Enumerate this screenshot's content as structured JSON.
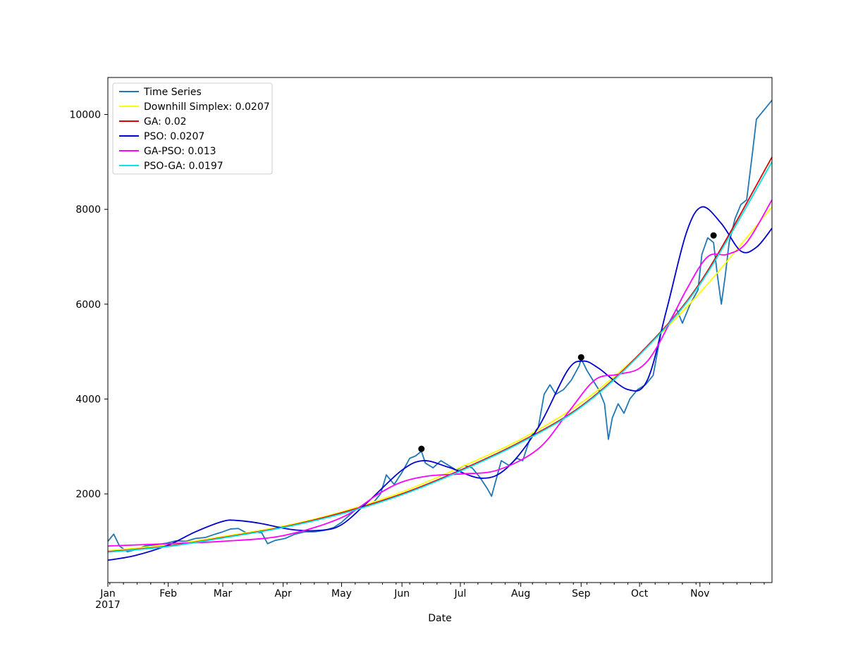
{
  "chart_data": {
    "type": "line",
    "title": "",
    "xlabel": "Date",
    "ylabel": "",
    "x_range": [
      "2017-01-01",
      "2017-12-08"
    ],
    "ylim": [
      130,
      10780
    ],
    "grid": false,
    "legend_position": "top-left",
    "x_ticks": [
      {
        "date": "2017-01-01",
        "label": "Jan",
        "sublabel": "2017"
      },
      {
        "date": "2017-02-01",
        "label": "Feb",
        "sublabel": ""
      },
      {
        "date": "2017-03-01",
        "label": "Mar",
        "sublabel": ""
      },
      {
        "date": "2017-04-01",
        "label": "Apr",
        "sublabel": ""
      },
      {
        "date": "2017-05-01",
        "label": "May",
        "sublabel": ""
      },
      {
        "date": "2017-06-01",
        "label": "Jun",
        "sublabel": ""
      },
      {
        "date": "2017-07-01",
        "label": "Jul",
        "sublabel": ""
      },
      {
        "date": "2017-08-01",
        "label": "Aug",
        "sublabel": ""
      },
      {
        "date": "2017-09-01",
        "label": "Sep",
        "sublabel": ""
      },
      {
        "date": "2017-10-01",
        "label": "Oct",
        "sublabel": ""
      },
      {
        "date": "2017-11-01",
        "label": "Nov",
        "sublabel": ""
      }
    ],
    "y_ticks": [
      2000,
      4000,
      6000,
      8000,
      10000
    ],
    "series": [
      {
        "name": "Time Series",
        "color": "#1f77b4",
        "points": [
          [
            "2017-01-01",
            1000
          ],
          [
            "2017-01-04",
            1150
          ],
          [
            "2017-01-07",
            900
          ],
          [
            "2017-01-11",
            780
          ],
          [
            "2017-01-15",
            820
          ],
          [
            "2017-01-20",
            900
          ],
          [
            "2017-01-25",
            920
          ],
          [
            "2017-01-31",
            960
          ],
          [
            "2017-02-05",
            1010
          ],
          [
            "2017-02-10",
            1000
          ],
          [
            "2017-02-15",
            1060
          ],
          [
            "2017-02-20",
            1080
          ],
          [
            "2017-02-25",
            1150
          ],
          [
            "2017-03-01",
            1200
          ],
          [
            "2017-03-05",
            1260
          ],
          [
            "2017-03-09",
            1270
          ],
          [
            "2017-03-13",
            1180
          ],
          [
            "2017-03-17",
            1200
          ],
          [
            "2017-03-21",
            1180
          ],
          [
            "2017-03-24",
            950
          ],
          [
            "2017-03-28",
            1020
          ],
          [
            "2017-04-02",
            1060
          ],
          [
            "2017-04-07",
            1150
          ],
          [
            "2017-04-12",
            1200
          ],
          [
            "2017-04-17",
            1200
          ],
          [
            "2017-04-22",
            1230
          ],
          [
            "2017-04-27",
            1290
          ],
          [
            "2017-05-01",
            1400
          ],
          [
            "2017-05-05",
            1550
          ],
          [
            "2017-05-09",
            1700
          ],
          [
            "2017-05-13",
            1780
          ],
          [
            "2017-05-17",
            1800
          ],
          [
            "2017-05-21",
            2000
          ],
          [
            "2017-05-24",
            2400
          ],
          [
            "2017-05-28",
            2200
          ],
          [
            "2017-06-01",
            2450
          ],
          [
            "2017-06-05",
            2750
          ],
          [
            "2017-06-08",
            2800
          ],
          [
            "2017-06-11",
            2900
          ],
          [
            "2017-06-13",
            2650
          ],
          [
            "2017-06-17",
            2550
          ],
          [
            "2017-06-21",
            2700
          ],
          [
            "2017-06-25",
            2600
          ],
          [
            "2017-06-29",
            2500
          ],
          [
            "2017-07-03",
            2600
          ],
          [
            "2017-07-07",
            2550
          ],
          [
            "2017-07-11",
            2350
          ],
          [
            "2017-07-15",
            2100
          ],
          [
            "2017-07-17",
            1950
          ],
          [
            "2017-07-19",
            2250
          ],
          [
            "2017-07-22",
            2700
          ],
          [
            "2017-07-26",
            2600
          ],
          [
            "2017-07-30",
            2750
          ],
          [
            "2017-08-02",
            2700
          ],
          [
            "2017-08-06",
            3200
          ],
          [
            "2017-08-10",
            3400
          ],
          [
            "2017-08-13",
            4100
          ],
          [
            "2017-08-16",
            4300
          ],
          [
            "2017-08-19",
            4100
          ],
          [
            "2017-08-23",
            4200
          ],
          [
            "2017-08-27",
            4400
          ],
          [
            "2017-08-31",
            4700
          ],
          [
            "2017-09-01",
            4850
          ],
          [
            "2017-09-04",
            4600
          ],
          [
            "2017-09-07",
            4400
          ],
          [
            "2017-09-10",
            4200
          ],
          [
            "2017-09-13",
            3900
          ],
          [
            "2017-09-15",
            3150
          ],
          [
            "2017-09-17",
            3600
          ],
          [
            "2017-09-20",
            3900
          ],
          [
            "2017-09-23",
            3700
          ],
          [
            "2017-09-26",
            4000
          ],
          [
            "2017-09-30",
            4200
          ],
          [
            "2017-10-04",
            4300
          ],
          [
            "2017-10-08",
            4500
          ],
          [
            "2017-10-12",
            5400
          ],
          [
            "2017-10-16",
            5600
          ],
          [
            "2017-10-20",
            5900
          ],
          [
            "2017-10-23",
            5600
          ],
          [
            "2017-10-27",
            6000
          ],
          [
            "2017-10-31",
            6300
          ],
          [
            "2017-11-02",
            7050
          ],
          [
            "2017-11-05",
            7400
          ],
          [
            "2017-11-08",
            7300
          ],
          [
            "2017-11-10",
            6600
          ],
          [
            "2017-11-12",
            6000
          ],
          [
            "2017-11-14",
            6600
          ],
          [
            "2017-11-16",
            7300
          ],
          [
            "2017-11-19",
            7800
          ],
          [
            "2017-11-22",
            8100
          ],
          [
            "2017-11-25",
            8200
          ],
          [
            "2017-11-28",
            9200
          ],
          [
            "2017-11-30",
            9900
          ],
          [
            "2017-12-02",
            10000
          ],
          [
            "2017-12-08",
            10300
          ]
        ]
      },
      {
        "name": "Downhill Simplex: 0.0207",
        "color": "#ffff00",
        "points": [
          [
            "2017-01-01",
            800
          ],
          [
            "2017-02-01",
            930
          ],
          [
            "2017-03-01",
            1100
          ],
          [
            "2017-04-01",
            1320
          ],
          [
            "2017-05-01",
            1620
          ],
          [
            "2017-06-01",
            2040
          ],
          [
            "2017-07-01",
            2560
          ],
          [
            "2017-08-01",
            3150
          ],
          [
            "2017-09-01",
            3920
          ],
          [
            "2017-10-01",
            4950
          ],
          [
            "2017-11-01",
            6240
          ],
          [
            "2017-12-08",
            8050
          ]
        ]
      },
      {
        "name": "GA: 0.02",
        "color": "#e00000",
        "points": [
          [
            "2017-01-01",
            780
          ],
          [
            "2017-02-01",
            900
          ],
          [
            "2017-03-01",
            1080
          ],
          [
            "2017-04-01",
            1300
          ],
          [
            "2017-05-01",
            1600
          ],
          [
            "2017-06-01",
            2000
          ],
          [
            "2017-07-01",
            2500
          ],
          [
            "2017-08-01",
            3100
          ],
          [
            "2017-09-01",
            3850
          ],
          [
            "2017-10-01",
            4950
          ],
          [
            "2017-11-01",
            6450
          ],
          [
            "2017-12-08",
            9100
          ]
        ]
      },
      {
        "name": "PSO: 0.0207",
        "color": "#0000d0",
        "points": [
          [
            "2017-01-01",
            600
          ],
          [
            "2017-01-15",
            700
          ],
          [
            "2017-02-01",
            920
          ],
          [
            "2017-02-15",
            1200
          ],
          [
            "2017-03-01",
            1420
          ],
          [
            "2017-03-08",
            1440
          ],
          [
            "2017-03-20",
            1380
          ],
          [
            "2017-04-05",
            1250
          ],
          [
            "2017-04-20",
            1230
          ],
          [
            "2017-05-01",
            1350
          ],
          [
            "2017-05-15",
            1850
          ],
          [
            "2017-06-01",
            2500
          ],
          [
            "2017-06-12",
            2700
          ],
          [
            "2017-06-25",
            2560
          ],
          [
            "2017-07-12",
            2330
          ],
          [
            "2017-07-25",
            2550
          ],
          [
            "2017-08-10",
            3400
          ],
          [
            "2017-08-25",
            4600
          ],
          [
            "2017-09-02",
            4800
          ],
          [
            "2017-09-10",
            4650
          ],
          [
            "2017-09-25",
            4200
          ],
          [
            "2017-10-05",
            4400
          ],
          [
            "2017-10-15",
            5900
          ],
          [
            "2017-10-25",
            7500
          ],
          [
            "2017-11-02",
            8050
          ],
          [
            "2017-11-12",
            7700
          ],
          [
            "2017-11-22",
            7120
          ],
          [
            "2017-11-30",
            7200
          ],
          [
            "2017-12-08",
            7600
          ]
        ]
      },
      {
        "name": "GA-PSO: 0.013",
        "color": "#ff00ff",
        "points": [
          [
            "2017-01-01",
            900
          ],
          [
            "2017-02-01",
            950
          ],
          [
            "2017-03-01",
            1000
          ],
          [
            "2017-04-01",
            1120
          ],
          [
            "2017-05-01",
            1500
          ],
          [
            "2017-05-20",
            2000
          ],
          [
            "2017-06-01",
            2250
          ],
          [
            "2017-06-15",
            2380
          ],
          [
            "2017-07-01",
            2420
          ],
          [
            "2017-07-20",
            2500
          ],
          [
            "2017-08-10",
            2950
          ],
          [
            "2017-08-25",
            3700
          ],
          [
            "2017-09-08",
            4400
          ],
          [
            "2017-09-20",
            4520
          ],
          [
            "2017-10-01",
            4650
          ],
          [
            "2017-10-10",
            5100
          ],
          [
            "2017-10-25",
            6300
          ],
          [
            "2017-11-05",
            7000
          ],
          [
            "2017-11-15",
            7050
          ],
          [
            "2017-11-25",
            7300
          ],
          [
            "2017-12-08",
            8200
          ]
        ]
      },
      {
        "name": "PSO-GA: 0.0197",
        "color": "#00e5e5",
        "points": [
          [
            "2017-01-01",
            770
          ],
          [
            "2017-02-01",
            890
          ],
          [
            "2017-03-01",
            1070
          ],
          [
            "2017-04-01",
            1290
          ],
          [
            "2017-05-01",
            1580
          ],
          [
            "2017-06-01",
            1980
          ],
          [
            "2017-07-01",
            2480
          ],
          [
            "2017-08-01",
            3080
          ],
          [
            "2017-09-01",
            3830
          ],
          [
            "2017-10-01",
            4930
          ],
          [
            "2017-11-01",
            6420
          ],
          [
            "2017-12-08",
            9000
          ]
        ]
      }
    ],
    "markers": [
      {
        "date": "2017-06-11",
        "value": 2950
      },
      {
        "date": "2017-09-01",
        "value": 4880
      },
      {
        "date": "2017-11-08",
        "value": 7450
      }
    ]
  }
}
